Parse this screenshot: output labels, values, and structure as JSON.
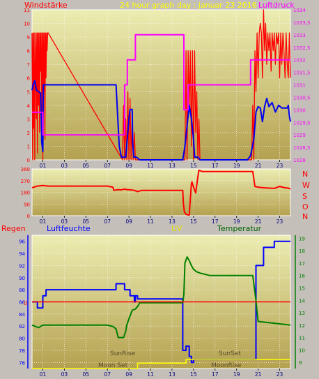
{
  "header": {
    "left_label": "Windstärke",
    "title": "24 hour graph day : januar 23 2016",
    "right_label": "Luftdruck"
  },
  "middle_panel": {
    "compass_labels": [
      "N",
      "W",
      "S",
      "O",
      "N"
    ]
  },
  "bottom_panel": {
    "labels": {
      "rain": "Regen",
      "humidity": "Luftfeuchte",
      "uv": "UV",
      "temperature": "Temperatur"
    },
    "annotations": {
      "sun_rise": "SunRise",
      "sun_set": "SunSet",
      "moon_set": "Moon Set",
      "moon_rise": "MoonRise"
    },
    "rain_zero_label": "0"
  },
  "colors": {
    "panel_bg_top": "#ecedb2",
    "panel_bg_bottom": "#b4a150",
    "outer_bg": "#c4bfb9",
    "wind": "#ff0000",
    "wind_avg": "#0000ee",
    "pressure": "#ff00ff",
    "direction": "#ff0000",
    "humidity": "#0000ff",
    "temperature": "#008000",
    "rain": "#ff0000",
    "uv": "#ffff00",
    "header_left": "#ff0000",
    "header_title": "#ffff00",
    "header_right": "#ff00ff",
    "header_rain": "#ff0000",
    "header_humidity": "#0000ff",
    "header_uv": "#e6e600",
    "header_temp": "#006400"
  },
  "chart_data": [
    {
      "type": "line",
      "id": "wind_pressure",
      "xlim": [
        0,
        24
      ],
      "x_tick_labels": [
        "01",
        "03",
        "05",
        "07",
        "09",
        "11",
        "13",
        "15",
        "17",
        "19",
        "21",
        "23"
      ],
      "y_left": {
        "lim": [
          0,
          11
        ],
        "ticks": [
          "0",
          "1",
          "2",
          "3",
          "4",
          "5",
          "6",
          "7",
          "8",
          "9",
          "10",
          "11"
        ]
      },
      "y_right": {
        "lim": [
          1028,
          1034
        ],
        "ticks": [
          "1028",
          "1028,5",
          "1029",
          "1029,5",
          "1030",
          "1030,5",
          "1031",
          "1031,5",
          "1032",
          "1032,5",
          "1033",
          "1033,5",
          "1034"
        ]
      },
      "series": [
        {
          "axis": "left",
          "color": "#ff0000",
          "style": "gust",
          "x": [
            0.0,
            0.05,
            0.1,
            0.15,
            0.2,
            0.25,
            0.3,
            0.35,
            0.4,
            0.45,
            0.5,
            0.55,
            0.6,
            0.65,
            0.7,
            0.75,
            0.8,
            0.85,
            0.9,
            0.95,
            1.0,
            1.05,
            1.1,
            1.15,
            1.2,
            1.25,
            1.3,
            1.35,
            1.4,
            1.45,
            1.5,
            8.4,
            8.5,
            8.6,
            8.7,
            8.8,
            8.9,
            9.0,
            9.1,
            9.2,
            9.3,
            9.4,
            9.5,
            9.6,
            14.2,
            14.3,
            14.4,
            14.5,
            14.6,
            14.7,
            14.8,
            14.9,
            15.0,
            15.1,
            15.2,
            15.3,
            15.4,
            15.5,
            15.6,
            20.4,
            20.5,
            20.6,
            20.7,
            20.8,
            20.9,
            21.0,
            21.1,
            21.2,
            21.3,
            21.4,
            21.5,
            21.6,
            21.7,
            21.8,
            21.9,
            22.0,
            22.1,
            22.2,
            22.3,
            22.4,
            22.5,
            22.6,
            22.7,
            22.8,
            22.9,
            23.0,
            23.1,
            23.2,
            23.3,
            23.4,
            23.5,
            23.6,
            23.7,
            23.8,
            23.9,
            24.0
          ],
          "y": [
            9.3,
            0,
            9.3,
            2.3,
            9.3,
            0,
            7.0,
            9.3,
            3.0,
            9.3,
            0.5,
            9.3,
            4.0,
            9.3,
            2.0,
            9.3,
            6.5,
            9.3,
            3.0,
            9.3,
            0,
            9.3,
            5.0,
            9.3,
            1.5,
            9.3,
            6.0,
            9.3,
            8.0,
            9.3,
            9.3,
            0,
            4.0,
            0,
            3.0,
            0,
            5.0,
            0,
            4.5,
            0,
            3.0,
            0,
            2.0,
            0,
            0,
            8.0,
            0,
            8.0,
            4.0,
            8.0,
            1.0,
            8.0,
            0,
            8.0,
            2.0,
            5.0,
            0,
            3.0,
            0,
            0,
            4.0,
            0,
            8.0,
            5.0,
            9.3,
            6.0,
            9.3,
            10.0,
            9.3,
            6.0,
            11.0,
            8.0,
            10.0,
            7.0,
            9.3,
            8.0,
            9.3,
            6.5,
            9.3,
            8.0,
            9.3,
            7.0,
            9.3,
            8.5,
            9.3,
            6.0,
            9.3,
            7.0,
            9.3,
            8.0,
            6.0,
            9.3,
            7.0,
            6.0,
            9.3,
            6.0
          ]
        },
        {
          "axis": "left",
          "color": "#0000ee",
          "style": "avg",
          "x": [
            0,
            0.1,
            0.25,
            0.4,
            0.6,
            0.8,
            0.9,
            1.0,
            1.05,
            1.2,
            1.5,
            2.5,
            4.5,
            6.5,
            7.8,
            8.1,
            8.3,
            8.5,
            8.7,
            9.0,
            9.1,
            9.3,
            9.35,
            9.45,
            9.7,
            10.0,
            12.0,
            13.5,
            14.0,
            14.2,
            14.4,
            14.6,
            14.8,
            15.0,
            15.1,
            15.2,
            15.4,
            15.6,
            16.0,
            18.0,
            19.5,
            20.0,
            20.3,
            20.6,
            20.8,
            21.0,
            21.2,
            21.4,
            21.6,
            21.8,
            22.0,
            22.3,
            22.6,
            22.9,
            23.2,
            23.5,
            23.7,
            23.8,
            23.9,
            24.0
          ],
          "y": [
            5.1,
            5.5,
            5.8,
            5.1,
            5.0,
            4.9,
            1.3,
            0.6,
            5.5,
            5.5,
            5.5,
            5.5,
            5.5,
            5.5,
            5.5,
            1.0,
            0.2,
            0.2,
            0.2,
            3.0,
            3.7,
            3.7,
            1.2,
            0.2,
            0.2,
            0,
            0,
            0,
            0,
            1.0,
            2.5,
            4.0,
            3.0,
            1.5,
            0.2,
            0.2,
            0.2,
            0,
            0,
            0,
            0,
            0,
            0.3,
            1.5,
            3.5,
            3.9,
            3.8,
            2.8,
            3.9,
            4.5,
            3.9,
            4.2,
            3.5,
            4.0,
            3.8,
            3.8,
            3.8,
            4.0,
            3.2,
            2.8
          ]
        },
        {
          "axis": "right",
          "color": "#ff00ff",
          "style": "pressure",
          "x": [
            0,
            1.0,
            1.0,
            8.6,
            8.6,
            8.85,
            8.85,
            9.6,
            9.6,
            14.1,
            14.1,
            14.5,
            14.5,
            20.3,
            20.3,
            24.0
          ],
          "y": [
            1029.9,
            1029.9,
            1029.0,
            1029.0,
            1031.0,
            1031.0,
            1032.0,
            1032.0,
            1033.0,
            1033.0,
            1030.0,
            1030.0,
            1031.0,
            1031.0,
            1032.0,
            1032.0
          ]
        }
      ]
    },
    {
      "type": "line",
      "id": "wind_direction",
      "xlim": [
        0,
        24
      ],
      "y_left": {
        "lim": [
          0,
          360
        ],
        "ticks": [
          "0",
          "90",
          "180",
          "270",
          "360"
        ]
      },
      "series": [
        {
          "color": "#ff0000",
          "style": "direction",
          "x": [
            0,
            0.5,
            1.0,
            1.5,
            2.5,
            4.0,
            5.5,
            7.0,
            7.5,
            7.6,
            8.0,
            8.3,
            8.6,
            8.8,
            9.0,
            9.5,
            9.8,
            10.0,
            10.2,
            11.0,
            12.0,
            13.0,
            14.0,
            14.05,
            14.15,
            14.3,
            14.5,
            14.6,
            14.8,
            14.85,
            15.0,
            15.2,
            15.4,
            15.5,
            15.8,
            17.0,
            19.0,
            20.5,
            20.7,
            21.0,
            21.5,
            22.0,
            22.5,
            23.0,
            23.5,
            23.8,
            24.0
          ],
          "y": [
            215,
            228,
            232,
            228,
            228,
            228,
            228,
            228,
            220,
            195,
            200,
            198,
            205,
            200,
            200,
            195,
            185,
            190,
            195,
            195,
            195,
            195,
            195,
            100,
            30,
            10,
            5,
            5,
            245,
            260,
            220,
            175,
            300,
            350,
            340,
            340,
            340,
            340,
            225,
            220,
            215,
            212,
            210,
            225,
            215,
            212,
            205
          ]
        }
      ]
    },
    {
      "type": "line",
      "id": "climate",
      "xlim": [
        0,
        24
      ],
      "y_left": {
        "lim": [
          75,
          97
        ],
        "ticks": [
          "76",
          "78",
          "80",
          "82",
          "84",
          "86",
          "88",
          "90",
          "92",
          "94",
          "96"
        ]
      },
      "y_right": {
        "lim": [
          8.5,
          19.25
        ],
        "ticks": [
          "9",
          "10",
          "11",
          "12",
          "13",
          "14",
          "15",
          "16",
          "17",
          "18",
          "19"
        ]
      },
      "series": [
        {
          "axis": "left",
          "color": "#0000ff",
          "style": "humidity",
          "x": [
            0,
            0.5,
            0.5,
            1.0,
            1.0,
            1.3,
            1.3,
            7.8,
            7.8,
            8.6,
            8.6,
            9.1,
            9.1,
            9.5,
            9.5,
            9.6,
            9.6,
            9.8,
            9.8,
            14.0,
            14.0,
            14.3,
            14.3,
            14.6,
            14.6,
            14.8,
            14.8,
            15.0,
            15.0,
            15.2,
            15.2,
            20.8,
            20.8,
            21.5,
            21.5,
            22.5,
            22.5,
            24.0
          ],
          "y": [
            86.0,
            86.0,
            85.0,
            85.0,
            87.0,
            87.0,
            88.0,
            88.0,
            89.0,
            89.0,
            88.0,
            88.0,
            87.0,
            87.0,
            86.0,
            86.0,
            87.0,
            87.0,
            86.5,
            86.5,
            78.0,
            78.0,
            78.7,
            78.7,
            77.0,
            77.0,
            76.0,
            76.0,
            76.5,
            76.5,
            76.5,
            76.5,
            92.0,
            92.0,
            95.0,
            95.0,
            96.0,
            96.0
          ]
        },
        {
          "axis": "right",
          "color": "#008000",
          "style": "temperature",
          "x": [
            0,
            0.3,
            0.6,
            0.8,
            1.0,
            3.0,
            5.0,
            7.0,
            7.5,
            7.8,
            8.0,
            8.5,
            8.7,
            8.8,
            9.0,
            9.3,
            9.6,
            9.8,
            10.0,
            10.5,
            12.0,
            13.5,
            14.0,
            14.1,
            14.2,
            14.4,
            14.6,
            14.8,
            15.0,
            15.3,
            15.6,
            16.5,
            18.0,
            19.5,
            20.5,
            20.8,
            21.0,
            22.0,
            23.0,
            24.0
          ],
          "y": [
            12.0,
            11.9,
            11.8,
            11.9,
            12.0,
            12.0,
            12.0,
            12.0,
            11.9,
            11.7,
            11.0,
            11.0,
            11.5,
            12.0,
            12.5,
            13.2,
            13.3,
            13.5,
            13.8,
            13.8,
            13.8,
            13.8,
            13.8,
            14.5,
            17.0,
            17.5,
            17.2,
            16.8,
            16.5,
            16.3,
            16.2,
            16.0,
            16.0,
            16.0,
            16.0,
            14.0,
            12.3,
            12.2,
            12.1,
            12.0
          ]
        },
        {
          "axis": "left",
          "color": "#ff0000",
          "style": "rain",
          "x": [
            0,
            24
          ],
          "y": [
            86.0,
            86.0
          ]
        },
        {
          "axis": "left",
          "color": "#ffff00",
          "style": "uv",
          "x": [
            0,
            9.8,
            9.8,
            14.3,
            14.3,
            24.0
          ],
          "y": [
            75.0,
            75.0,
            75.9,
            75.9,
            76.5,
            76.5
          ]
        }
      ]
    }
  ]
}
